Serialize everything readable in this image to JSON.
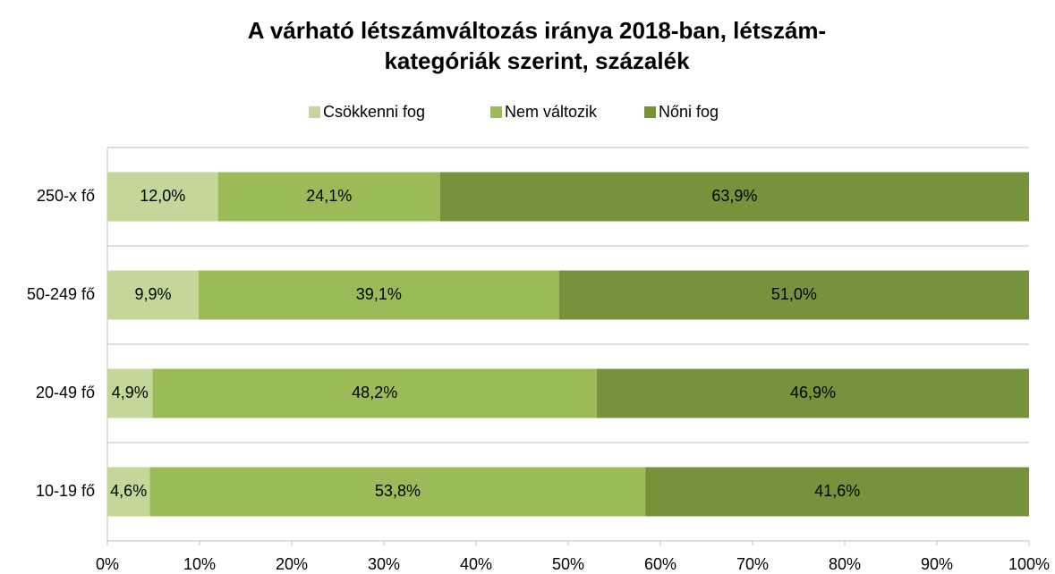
{
  "chart_data": {
    "type": "bar",
    "orientation": "horizontal",
    "stacked": true,
    "title": [
      "A várható létszámváltozás iránya 2018-ban, létszám-",
      "kategóriák szerint, százalék"
    ],
    "categories": [
      "250-x fő",
      "50-249 fő",
      "20-49 fő",
      "10-19 fő"
    ],
    "series": [
      {
        "name": "Csökkenni fog",
        "color": "#c4d79b",
        "values": [
          12.0,
          9.9,
          4.9,
          4.6
        ],
        "value_labels": [
          "12,0%",
          "9,9%",
          "4,9%",
          "4,6%"
        ]
      },
      {
        "name": "Nem változik",
        "color": "#9bbb59",
        "values": [
          24.1,
          39.1,
          48.2,
          53.8
        ],
        "value_labels": [
          "24,1%",
          "39,1%",
          "48,2%",
          "53,8%"
        ]
      },
      {
        "name": "Nőni fog",
        "color": "#76933c",
        "values": [
          63.9,
          51.0,
          46.9,
          41.6
        ],
        "value_labels": [
          "63,9%",
          "51,0%",
          "46,9%",
          "41,6%"
        ]
      }
    ],
    "xlim": [
      0,
      100
    ],
    "xticks": [
      {
        "value": 0,
        "label": "0%"
      },
      {
        "value": 10,
        "label": "10%"
      },
      {
        "value": 20,
        "label": "20%"
      },
      {
        "value": 30,
        "label": "30%"
      },
      {
        "value": 40,
        "label": "40%"
      },
      {
        "value": 50,
        "label": "50%"
      },
      {
        "value": 60,
        "label": "60%"
      },
      {
        "value": 70,
        "label": "70%"
      },
      {
        "value": 80,
        "label": "80%"
      },
      {
        "value": 90,
        "label": "90%"
      },
      {
        "value": 100,
        "label": "100%"
      }
    ],
    "legend": "top"
  }
}
